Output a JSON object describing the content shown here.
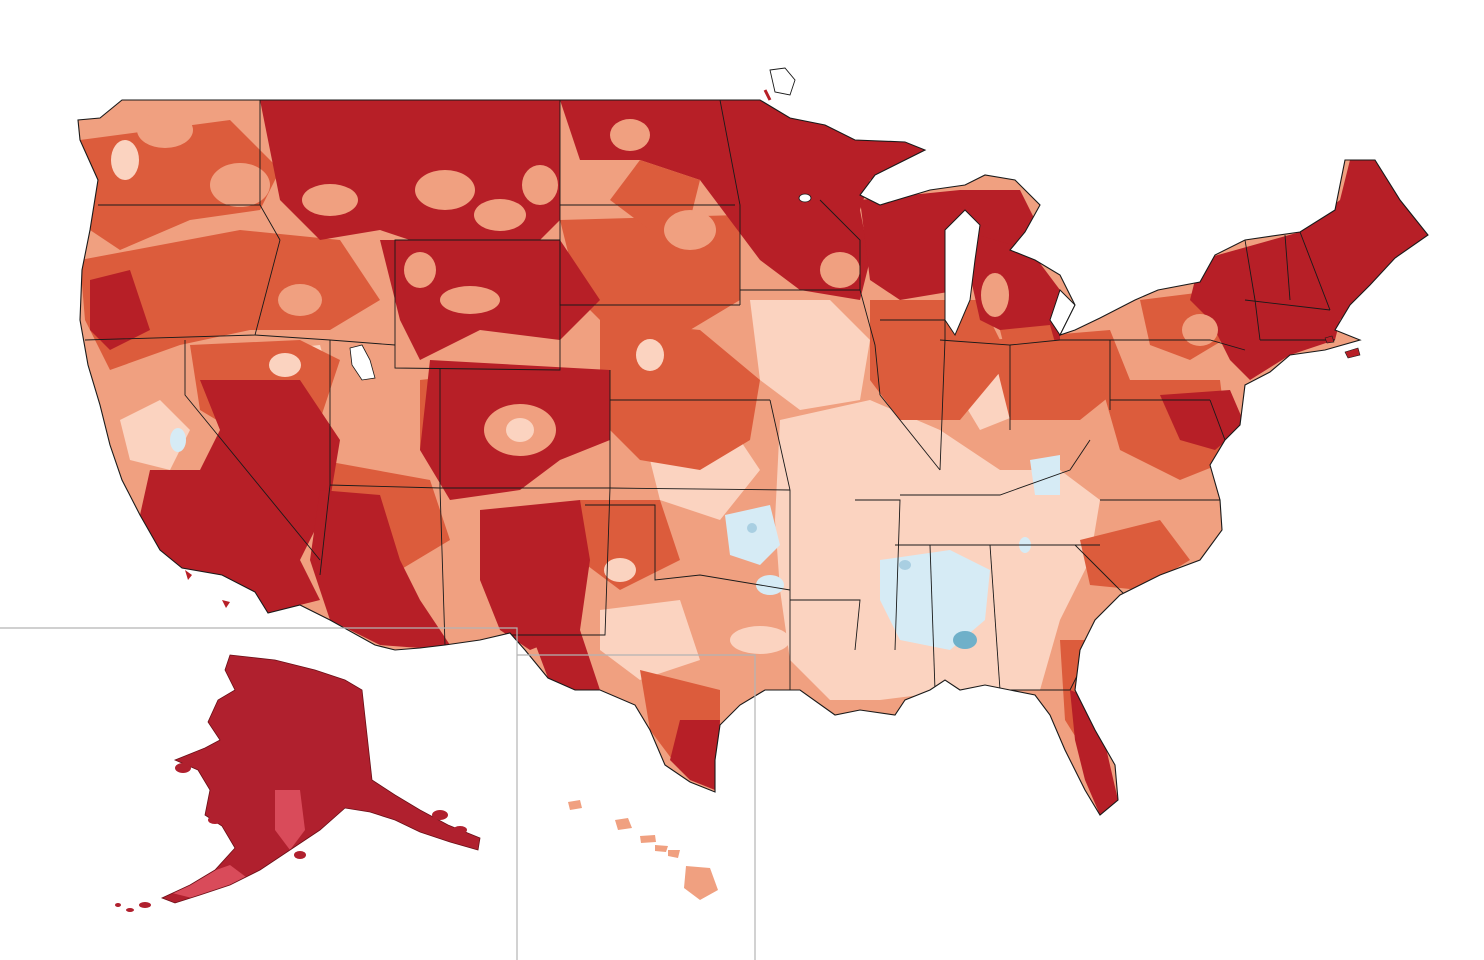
{
  "map": {
    "colors": {
      "c1": "#b71f27",
      "c2": "#dc5c3c",
      "c3": "#f0a080",
      "c4": "#fbd3c0",
      "c5": "#d6ebf5",
      "c6": "#a9cfe2",
      "c7": "#6fb0c9",
      "alaska_main": "#b0202e",
      "alaska_light": "#d94b5a",
      "lake": "#ffffff",
      "border": "#1a1a1a",
      "inset_frame": "#b3b3b3"
    },
    "regions": [
      {
        "name": "contiguous-us",
        "label": ""
      },
      {
        "name": "alaska-inset",
        "label": ""
      },
      {
        "name": "hawaii-inset",
        "label": ""
      }
    ]
  }
}
